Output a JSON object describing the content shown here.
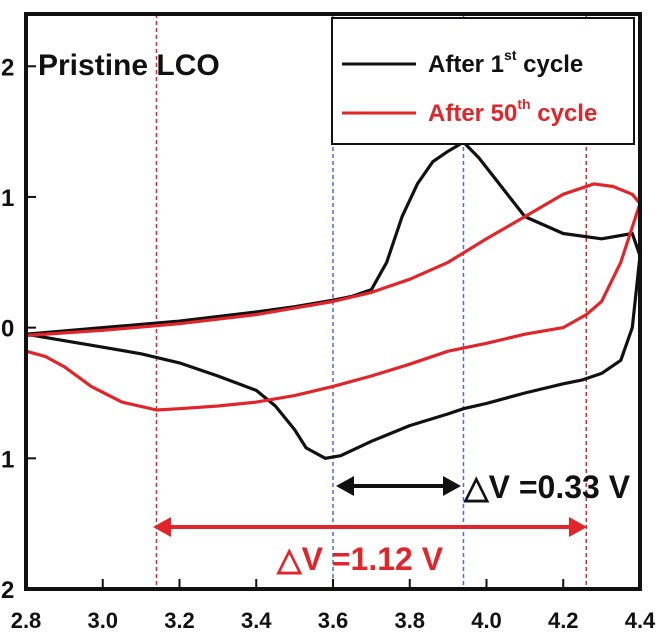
{
  "chart_data": {
    "type": "line",
    "title": "Pristine LCO",
    "xlabel": "",
    "ylabel": "",
    "xlim": [
      2.8,
      4.4
    ],
    "ylim": [
      -2,
      2.4
    ],
    "x_ticks": [
      "2.8",
      "3.0",
      "3.2",
      "3.4",
      "3.6",
      "3.8",
      "4.0",
      "4.2",
      "4.4"
    ],
    "y_ticks": [
      {
        "value": 2,
        "label": "2"
      },
      {
        "value": 1,
        "label": "1"
      },
      {
        "value": 0,
        "label": "0"
      },
      {
        "value": -1,
        "label": "1"
      },
      {
        "value": -2,
        "label": "2"
      }
    ],
    "legend": {
      "placement": "top-right",
      "entries": [
        {
          "color": "#111111",
          "base": "After 1",
          "sup": "st",
          "suffix": " cycle"
        },
        {
          "color": "#e0262a",
          "base": "After 50",
          "sup": "th",
          "suffix": " cycle"
        }
      ]
    },
    "series": [
      {
        "color": "#111111",
        "x": [
          2.8,
          3.0,
          3.2,
          3.4,
          3.5,
          3.6,
          3.65,
          3.7,
          3.74,
          3.78,
          3.82,
          3.86,
          3.9,
          3.94,
          3.98,
          4.02,
          4.06,
          4.1,
          4.2,
          4.3,
          4.38,
          4.4,
          4.38,
          4.35,
          4.3,
          4.25,
          4.2,
          4.1,
          4.0,
          3.94,
          3.9,
          3.8,
          3.7,
          3.62,
          3.58,
          3.53,
          3.5,
          3.45,
          3.4,
          3.3,
          3.2,
          3.1,
          3.0,
          2.9,
          2.8
        ],
        "y": [
          -0.05,
          0.0,
          0.05,
          0.12,
          0.16,
          0.21,
          0.24,
          0.29,
          0.5,
          0.85,
          1.1,
          1.27,
          1.35,
          1.42,
          1.3,
          1.15,
          1.0,
          0.85,
          0.72,
          0.68,
          0.72,
          0.55,
          0.0,
          -0.25,
          -0.35,
          -0.4,
          -0.43,
          -0.5,
          -0.58,
          -0.62,
          -0.66,
          -0.75,
          -0.87,
          -0.98,
          -1.0,
          -0.92,
          -0.78,
          -0.6,
          -0.48,
          -0.37,
          -0.27,
          -0.2,
          -0.15,
          -0.1,
          -0.05
        ]
      },
      {
        "color": "#e0262a",
        "x": [
          2.8,
          3.0,
          3.2,
          3.4,
          3.6,
          3.7,
          3.8,
          3.9,
          4.0,
          4.1,
          4.2,
          4.25,
          4.28,
          4.33,
          4.38,
          4.4,
          4.35,
          4.3,
          4.26,
          4.2,
          4.1,
          4.0,
          3.9,
          3.8,
          3.7,
          3.6,
          3.5,
          3.4,
          3.3,
          3.2,
          3.14,
          3.05,
          2.97,
          2.9,
          2.85,
          2.8
        ],
        "y": [
          -0.06,
          -0.02,
          0.03,
          0.1,
          0.2,
          0.27,
          0.37,
          0.5,
          0.68,
          0.85,
          1.02,
          1.07,
          1.1,
          1.08,
          1.02,
          0.95,
          0.5,
          0.2,
          0.1,
          0.0,
          -0.05,
          -0.12,
          -0.18,
          -0.28,
          -0.37,
          -0.45,
          -0.52,
          -0.57,
          -0.6,
          -0.62,
          -0.63,
          -0.57,
          -0.45,
          -0.3,
          -0.22,
          -0.18
        ]
      }
    ],
    "markers": [
      {
        "x": 3.94,
        "color": "#4a6cd4"
      },
      {
        "x": 3.6,
        "color": "#4a6cd4"
      },
      {
        "x": 4.26,
        "color": "#e0262a"
      },
      {
        "x": 3.14,
        "color": "#e0262a"
      }
    ],
    "annotations": [
      {
        "text": "△V =0.33 V",
        "color": "#111111"
      },
      {
        "text": "△V =1.12 V",
        "color": "#e0262a"
      }
    ]
  }
}
